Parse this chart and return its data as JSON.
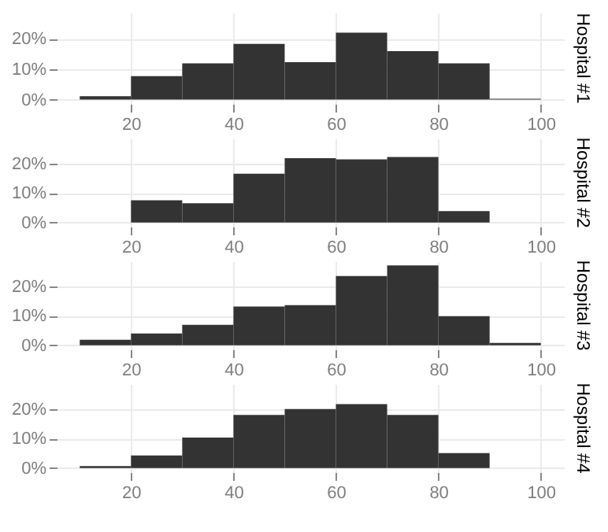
{
  "chart_data": [
    {
      "type": "histogram",
      "title": "Hospital #1",
      "bins": [
        10,
        20,
        30,
        40,
        50,
        60,
        70,
        80,
        90,
        100
      ],
      "values": [
        1.1,
        7.7,
        11.9,
        18.3,
        12.3,
        22,
        15.9,
        11.9,
        0.3
      ],
      "color": "#333333",
      "xlim": [
        5.5,
        104.5
      ],
      "xticks": [
        20,
        40,
        60,
        80,
        100
      ],
      "ylim": [
        -1.4,
        28.6
      ],
      "yticks": [
        {
          "value": 0,
          "label": "0%"
        },
        {
          "value": 10,
          "label": "10%"
        },
        {
          "value": 20,
          "label": "20%"
        }
      ],
      "grid": true
    },
    {
      "type": "histogram",
      "title": "Hospital #2",
      "bins": [
        10,
        20,
        30,
        40,
        50,
        60,
        70,
        80,
        90,
        100
      ],
      "values": [
        0,
        7.6,
        6.6,
        16.6,
        21.9,
        21.5,
        22.3,
        3.9,
        0
      ],
      "color": "#333333",
      "xlim": [
        5.5,
        104.5
      ],
      "xticks": [
        20,
        40,
        60,
        80,
        100
      ],
      "ylim": [
        -1.4,
        28.6
      ],
      "yticks": [
        {
          "value": 0,
          "label": "0%"
        },
        {
          "value": 10,
          "label": "10%"
        },
        {
          "value": 20,
          "label": "20%"
        }
      ],
      "grid": true
    },
    {
      "type": "histogram",
      "title": "Hospital #3",
      "bins": [
        10,
        20,
        30,
        40,
        50,
        60,
        70,
        80,
        90,
        100
      ],
      "values": [
        1.9,
        4,
        7,
        13.2,
        13.7,
        23.6,
        27.2,
        9.9,
        0.8
      ],
      "color": "#333333",
      "xlim": [
        5.5,
        104.5
      ],
      "xticks": [
        20,
        40,
        60,
        80,
        100
      ],
      "ylim": [
        -1.4,
        28.6
      ],
      "yticks": [
        {
          "value": 0,
          "label": "0%"
        },
        {
          "value": 10,
          "label": "10%"
        },
        {
          "value": 20,
          "label": "20%"
        }
      ],
      "grid": true
    },
    {
      "type": "histogram",
      "title": "Hospital #4",
      "bins": [
        10,
        20,
        30,
        40,
        50,
        60,
        70,
        80,
        90,
        100
      ],
      "values": [
        0.7,
        4.3,
        10.4,
        18.1,
        20.1,
        21.8,
        18.1,
        5.1,
        0
      ],
      "color": "#333333",
      "xlim": [
        5.5,
        104.5
      ],
      "xticks": [
        20,
        40,
        60,
        80,
        100
      ],
      "ylim": [
        -1.4,
        28.6
      ],
      "yticks": [
        {
          "value": 0,
          "label": "0%"
        },
        {
          "value": 10,
          "label": "10%"
        },
        {
          "value": 20,
          "label": "20%"
        }
      ],
      "grid": true
    }
  ]
}
